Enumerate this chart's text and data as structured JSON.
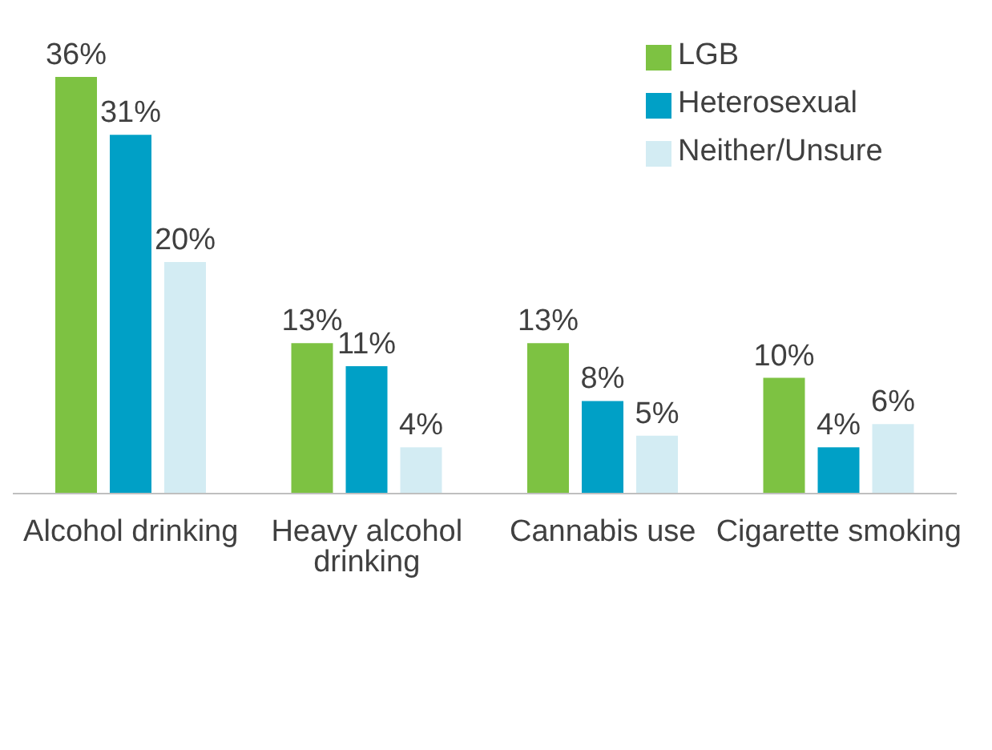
{
  "chart_data": {
    "type": "bar",
    "categories": [
      "Alcohol drinking",
      "Heavy alcohol drinking",
      "Cannabis use",
      "Cigarette smoking"
    ],
    "series": [
      {
        "name": "LGB",
        "color": "#7dc242",
        "values": [
          36,
          13,
          13,
          10
        ],
        "value_labels": [
          "36%",
          "13%",
          "13%",
          "10%"
        ]
      },
      {
        "name": "Heterosexual",
        "color": "#00a0c6",
        "values": [
          31,
          11,
          8,
          4
        ],
        "value_labels": [
          "31%",
          "11%",
          "8%",
          "4%"
        ]
      },
      {
        "name": "Neither/Unsure",
        "color": "#d3ecf3",
        "values": [
          20,
          4,
          5,
          6
        ],
        "value_labels": [
          "20%",
          "4%",
          "5%",
          "6%"
        ]
      }
    ],
    "legend": "top right",
    "grid": false
  }
}
